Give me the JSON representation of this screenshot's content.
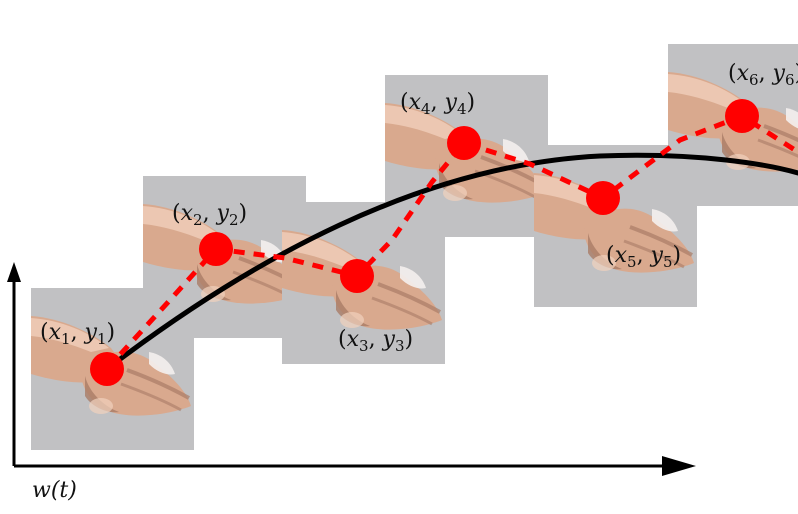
{
  "diagram": {
    "axis_label": "w(t)",
    "colors": {
      "trajectory": "#000000",
      "keypoint": "#ff0000",
      "frame_background": "#c1c1c3",
      "skin": "#d9a98e",
      "skin_shadow": "#a97c66",
      "skin_light": "#f1d2be",
      "tape": "#f4f0ee"
    },
    "keypoints": [
      {
        "label": "(x1, y1)",
        "sym_x": "x",
        "sub_x": "1",
        "sym_y": "y",
        "sub_y": "1"
      },
      {
        "label": "(x2, y2)",
        "sym_x": "x",
        "sub_x": "2",
        "sym_y": "y",
        "sub_y": "2"
      },
      {
        "label": "(x3, y3)",
        "sym_x": "x",
        "sub_x": "3",
        "sym_y": "y",
        "sub_y": "3"
      },
      {
        "label": "(x4, y4)",
        "sym_x": "x",
        "sub_x": "4",
        "sym_y": "y",
        "sub_y": "4"
      },
      {
        "label": "(x5, y5)",
        "sym_x": "x",
        "sub_x": "5",
        "sym_y": "y",
        "sub_y": "5"
      },
      {
        "label": "(x6, y6)",
        "sym_x": "x",
        "sub_x": "6",
        "sym_y": "y",
        "sub_y": "6"
      }
    ]
  }
}
